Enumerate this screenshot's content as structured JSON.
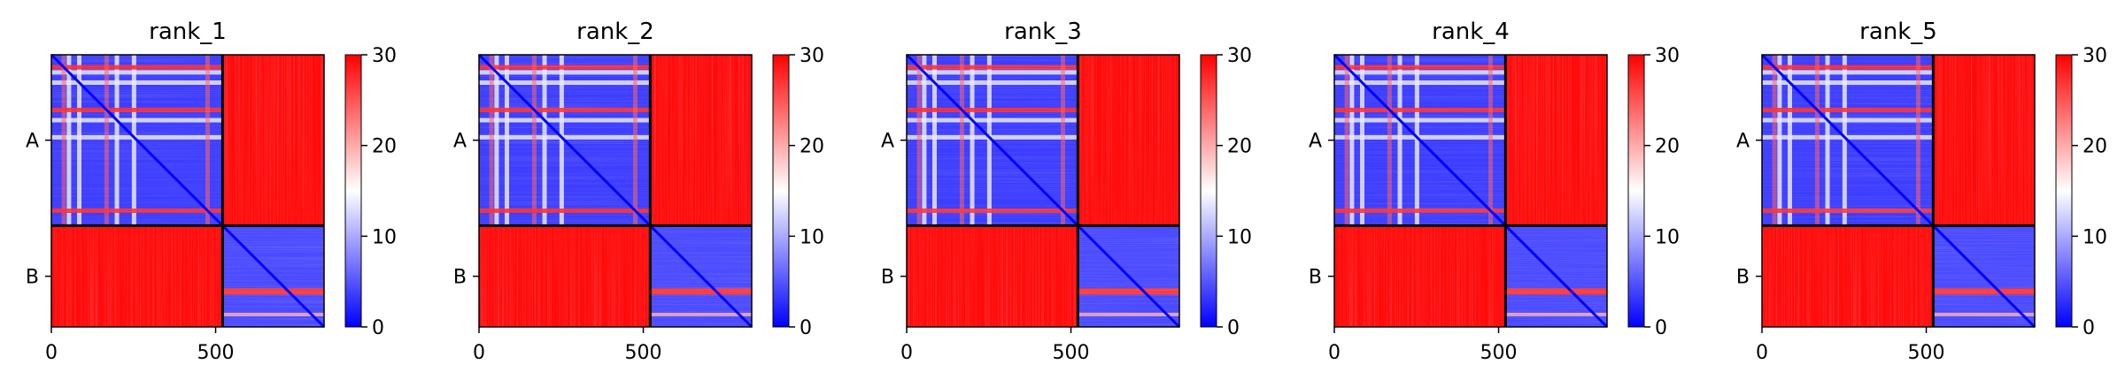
{
  "chart_data": {
    "type": "heatmap",
    "colormap": {
      "name": "bwr",
      "low": "#0000ff",
      "mid": "#ffffff",
      "high": "#ff0000"
    },
    "colorbar": {
      "vmin": 0,
      "vmax": 30,
      "ticks": [
        0,
        10,
        20,
        30
      ]
    },
    "xlim": [
      0,
      830
    ],
    "x_ticks": [
      0,
      500
    ],
    "chain_boundary": 521,
    "chains": [
      {
        "label": "A",
        "start": 0,
        "end": 521
      },
      {
        "label": "B",
        "start": 521,
        "end": 830
      }
    ],
    "panels": [
      {
        "title": "rank_1"
      },
      {
        "title": "rank_2"
      },
      {
        "title": "rank_3"
      },
      {
        "title": "rank_4"
      },
      {
        "title": "rank_5"
      }
    ]
  }
}
